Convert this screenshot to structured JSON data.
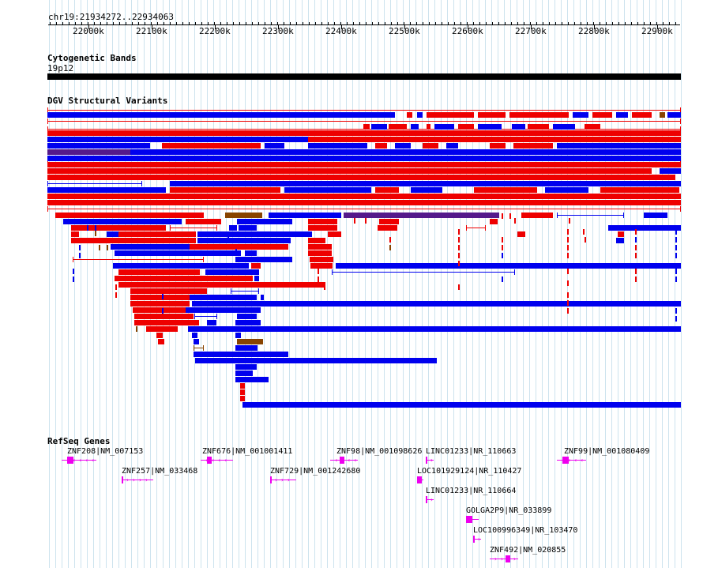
{
  "location": "chr19:21934272..22934063",
  "ruler": {
    "ticks": [
      "22000k",
      "22100k",
      "22200k",
      "22300k",
      "22400k",
      "22500k",
      "22600k",
      "22700k",
      "22800k",
      "22900k"
    ]
  },
  "tracks": {
    "cytoband": {
      "title": "Cytogenetic Bands",
      "band": "19p12"
    },
    "dgv": {
      "title": "DGV Structural Variants"
    },
    "refseq": {
      "title": "RefSeq Genes",
      "genes": [
        "ZNF208|NM_007153",
        "ZNF257|NM_033468",
        "ZNF676|NM_001001411",
        "ZNF729|NM_001242680",
        "ZNF98|NM_001098626",
        "LINC01233|NR_110663",
        "LOC101929124|NR_110427",
        "LINC01233|NR_110664",
        "GOLGA2P9|NR_033899",
        "LOC100996349|NR_103470",
        "ZNF492|NM_020855",
        "ZNF99|NM_001080409"
      ]
    }
  },
  "colors": {
    "gain": "#0000ee",
    "loss": "#ee0000",
    "complex": "#884400",
    "inversion": "#551a8b",
    "gene": "#ee00ee",
    "grid": "#cde3ee"
  }
}
